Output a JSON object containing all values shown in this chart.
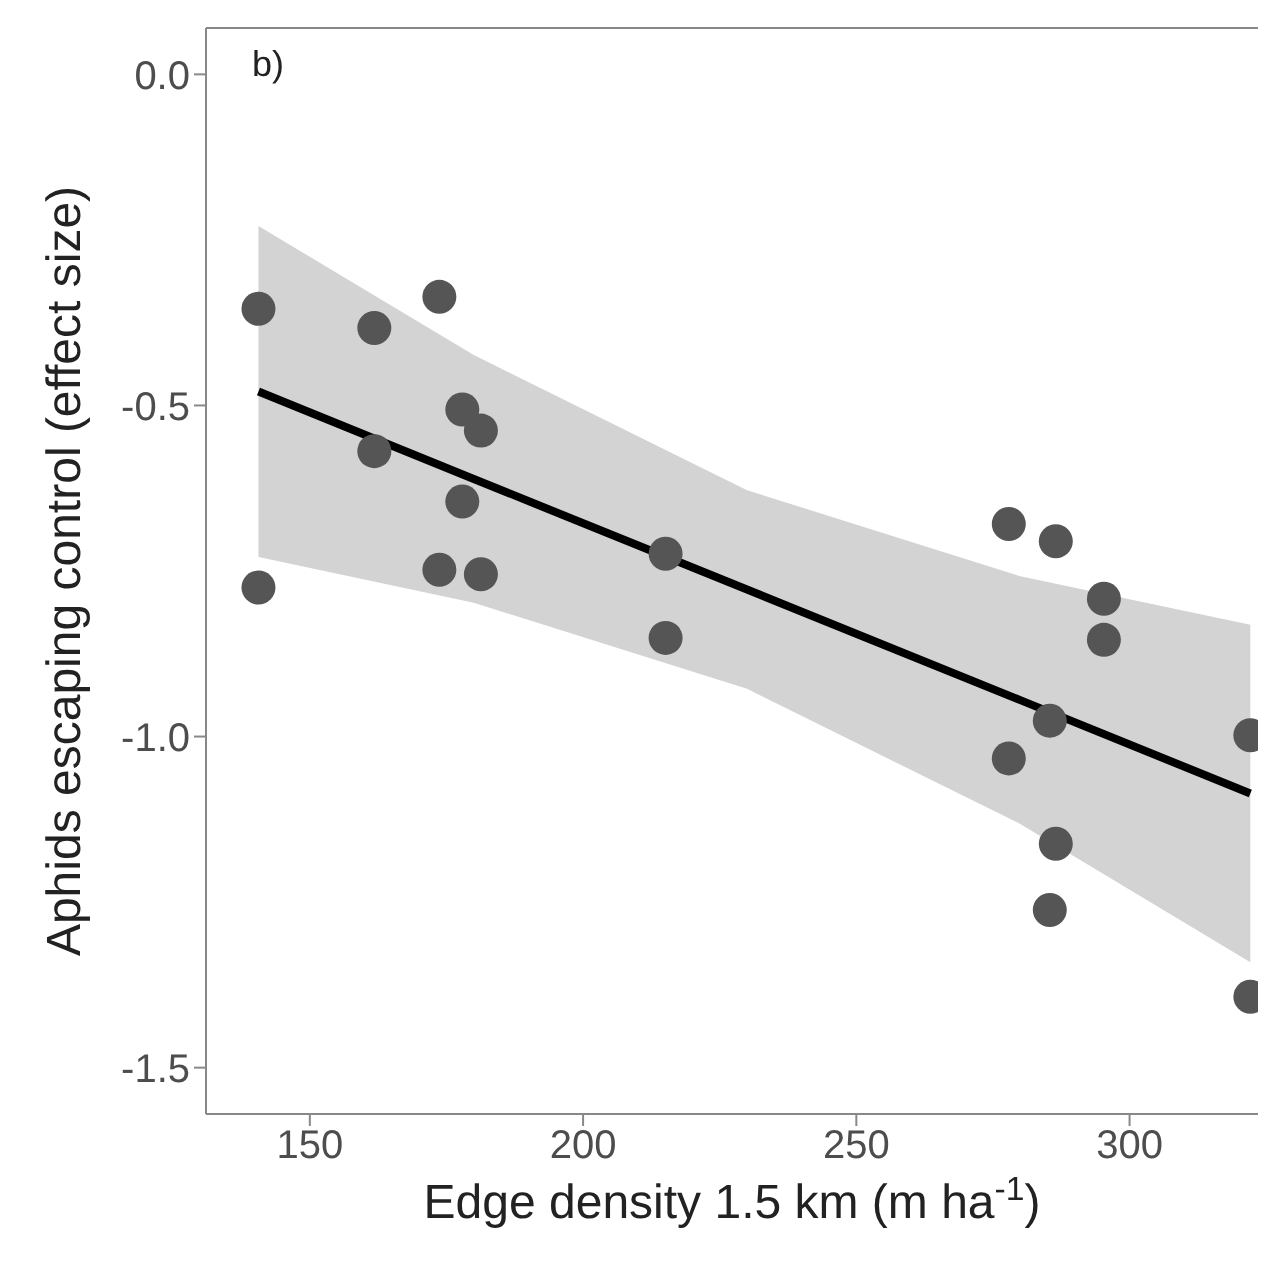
{
  "chart_data": {
    "type": "scatter",
    "xlabel": "Edge density 1.5 km (m ha$^{-1}$)",
    "ylabel": "Aphids escaping control (effect size)",
    "annotations": [
      "b)"
    ],
    "xlim": [
      131,
      323.5
    ],
    "xticks": [
      150,
      200,
      250,
      300
    ],
    "ylim": [
      -1.57,
      0.07
    ],
    "yticks": [
      {
        "value": 0,
        "label": "0.0"
      },
      -0.5,
      {
        "value": -1,
        "label": "-1.0"
      },
      -1.5
    ],
    "grid": false,
    "legend": false,
    "series": [
      {
        "marker": "circle",
        "color": "#555555",
        "x": [
          140.6,
          140.6,
          161.8,
          161.8,
          173.7,
          173.7,
          177.9,
          177.9,
          181.3,
          181.3,
          215.1,
          215.1,
          277.9,
          277.9,
          286.5,
          285.4,
          286.5,
          285.4,
          295.3,
          295.3,
          322.1,
          322.1
        ],
        "values": [
          -0.354,
          -0.775,
          -0.383,
          -0.569,
          -0.336,
          -0.748,
          -0.506,
          -0.645,
          -0.538,
          -0.755,
          -0.724,
          -0.851,
          -0.679,
          -1.033,
          -0.705,
          -0.976,
          -1.162,
          -1.262,
          -0.792,
          -0.854,
          -0.998,
          -1.393
        ]
      },
      {
        "type": "line",
        "marker": "none",
        "color": "#000000",
        "x": [
          140.6,
          180,
          230,
          280,
          322.1
        ],
        "values": [
          -0.479,
          -0.611,
          -0.778,
          -0.945,
          -1.086
        ],
        "lower": [
          -0.729,
          -0.798,
          -0.928,
          -1.132,
          -1.341
        ],
        "upper": [
          -0.229,
          -0.424,
          -0.628,
          -0.758,
          -0.831
        ]
      }
    ]
  }
}
